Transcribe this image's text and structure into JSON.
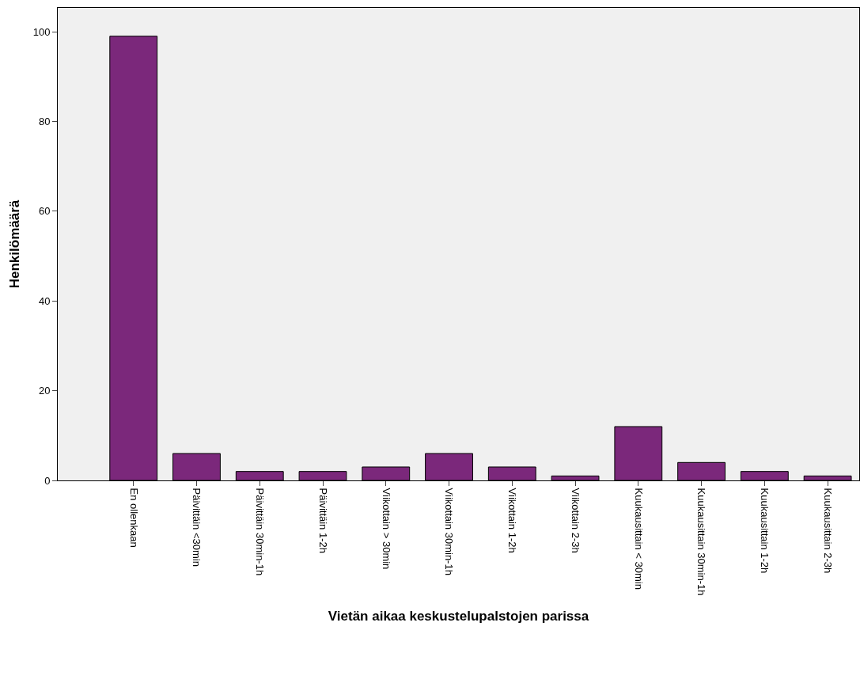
{
  "chart_data": {
    "type": "bar",
    "xlabel": "Vietän aikaa keskustelupalstojen parissa",
    "ylabel": "Henkilömäärä",
    "categories": [
      "En ollenkaan",
      "Päivittäin <30min",
      "Päivittäin 30min-1h",
      "Päivittäin 1-2h",
      "Viikottain > 30min",
      "Viikottain 30min-1h",
      "Viikottain 1-2h",
      "Viikottain 2-3h",
      "Kuukausittain < 30min",
      "Kuukausittain 30min-1h",
      "Kuukausittain 1-2h",
      "Kuukausittain 2-3h"
    ],
    "values": [
      99,
      6,
      2,
      2,
      3,
      6,
      3,
      1,
      12,
      4,
      2,
      1
    ],
    "color": "#7b287b",
    "ylim": [
      0,
      105.3
    ],
    "yticks": [
      0,
      20,
      40,
      60,
      80,
      100
    ],
    "grid": false
  }
}
